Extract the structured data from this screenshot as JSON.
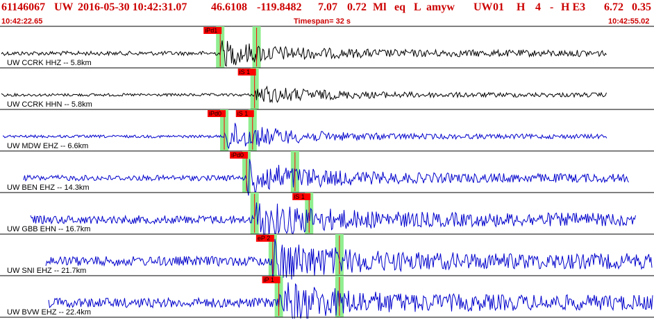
{
  "header": {
    "event_id": "61146067",
    "network": "UW",
    "datetime": "2016-05-30 10:42:31.07",
    "latitude": "46.6108",
    "longitude": "-119.8482",
    "depth": "7.07",
    "magnitude": "0.72",
    "mag_type": "Ml",
    "event_type": "eq",
    "event_class": "L",
    "analyst": "amyw",
    "network_code": "UW",
    "version": "01",
    "quality_code": "H",
    "num_stations": "4",
    "dash": "-",
    "quality_flag": "H E3",
    "rms": "6.72",
    "err": "0.35"
  },
  "timebar": {
    "start_time": "10:42:22.65",
    "timespan_label": "Timespan=  32 s",
    "end_time": "10:42:55.02"
  },
  "colors": {
    "header": "#cc0000",
    "short_period": "#0000cc",
    "broadband": "#000000",
    "pick_flag": "#ff0000",
    "pick_window": "#90ee90"
  },
  "traces": [
    {
      "label": "UW CCRK HHZ -- 5.8km",
      "station": "CCRK",
      "channel": "HHZ",
      "distance_km": 5.8,
      "color": "#000000",
      "picks": [
        {
          "label": "iPd1",
          "time_s": 10.9
        },
        {
          "label": "",
          "time_s": 12.7
        }
      ]
    },
    {
      "label": "UW CCRK HHN -- 5.8km",
      "station": "CCRK",
      "channel": "HHN",
      "distance_km": 5.8,
      "color": "#000000",
      "picks": [
        {
          "label": "iS 1",
          "time_s": 12.6
        }
      ]
    },
    {
      "label": "UW MDW EHZ -- 6.6km",
      "station": "MDW",
      "channel": "EHZ",
      "distance_km": 6.6,
      "color": "#0000cc",
      "picks": [
        {
          "label": "iPd0",
          "time_s": 11.1
        },
        {
          "label": "iS 1",
          "time_s": 12.5
        }
      ]
    },
    {
      "label": "UW BEN EHZ -- 14.3km",
      "station": "BEN",
      "channel": "EHZ",
      "distance_km": 14.3,
      "color": "#0000cc",
      "picks": [
        {
          "label": "iPd0",
          "time_s": 12.2
        },
        {
          "label": "",
          "time_s": 14.6
        }
      ]
    },
    {
      "label": "UW GBB EHN -- 16.7km",
      "station": "GBB",
      "channel": "EHN",
      "distance_km": 16.7,
      "color": "#0000cc",
      "picks": [
        {
          "label": "",
          "time_s": 12.6
        },
        {
          "label": "iS 1",
          "time_s": 15.3
        }
      ]
    },
    {
      "label": "UW SNI EHZ -- 21.7km",
      "station": "SNI",
      "channel": "EHZ",
      "distance_km": 21.7,
      "color": "#0000cc",
      "picks": [
        {
          "label": "eP 2",
          "time_s": 13.5
        },
        {
          "label": "",
          "time_s": 16.8
        }
      ]
    },
    {
      "label": "UW BVW EHZ -- 22.4km",
      "station": "BVW",
      "channel": "EHZ",
      "distance_km": 22.4,
      "color": "#0000cc",
      "picks": [
        {
          "label": "iP 1",
          "time_s": 13.8
        },
        {
          "label": "",
          "time_s": 16.8
        }
      ]
    }
  ]
}
